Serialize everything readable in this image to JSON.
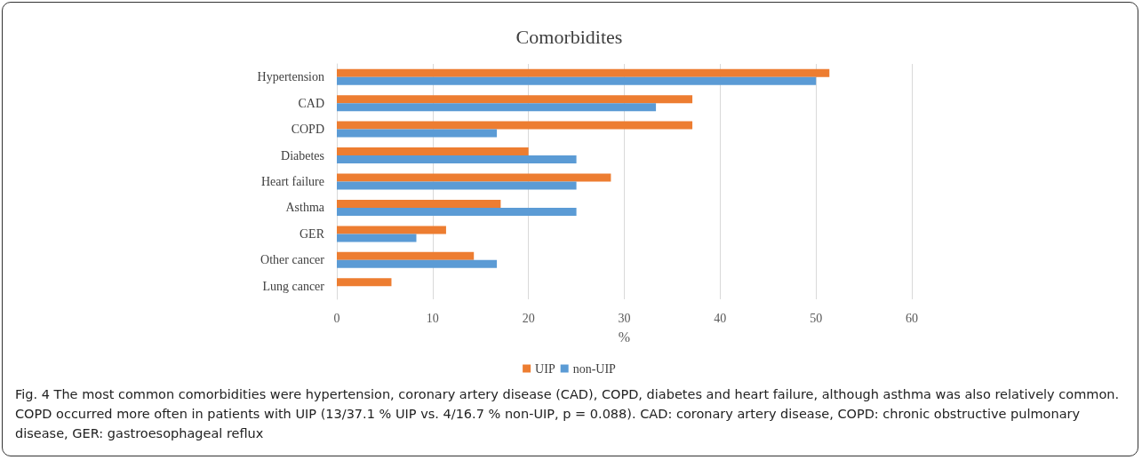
{
  "chart_data": {
    "type": "bar",
    "orientation": "horizontal",
    "title": "Comorbidites",
    "xlabel": "%",
    "categories": [
      "Hypertension",
      "CAD",
      "COPD",
      "Diabetes",
      "Heart failure",
      "Asthma",
      "GER",
      "Other cancer",
      "Lung cancer"
    ],
    "series": [
      {
        "name": "UIP",
        "color": "#ed7d31",
        "values": [
          51.4,
          37.1,
          37.1,
          20.0,
          28.6,
          17.1,
          11.4,
          14.3,
          5.7
        ]
      },
      {
        "name": "non-UIP",
        "color": "#5b9bd5",
        "values": [
          50.0,
          33.3,
          16.7,
          25.0,
          25.0,
          25.0,
          8.3,
          16.7,
          0
        ]
      }
    ],
    "xlim": [
      0,
      60
    ],
    "xticks": [
      0,
      10,
      20,
      30,
      40,
      50,
      60
    ],
    "grid": "x",
    "legend": "bottom",
    "annotations": [
      "Fig. 4 The most common comorbidities were hypertension, coronary artery disease (CAD), COPD, diabetes and heart failure, although asthma was also relatively common. COPD occurred more often in patients with UIP (13/37.1 % UIP vs. 4/16.7 % non-UIP, p = 0.088). CAD: coronary artery disease, COPD: chronic obstructive pulmonary disease, GER: gastroesophageal reflux"
    ]
  }
}
